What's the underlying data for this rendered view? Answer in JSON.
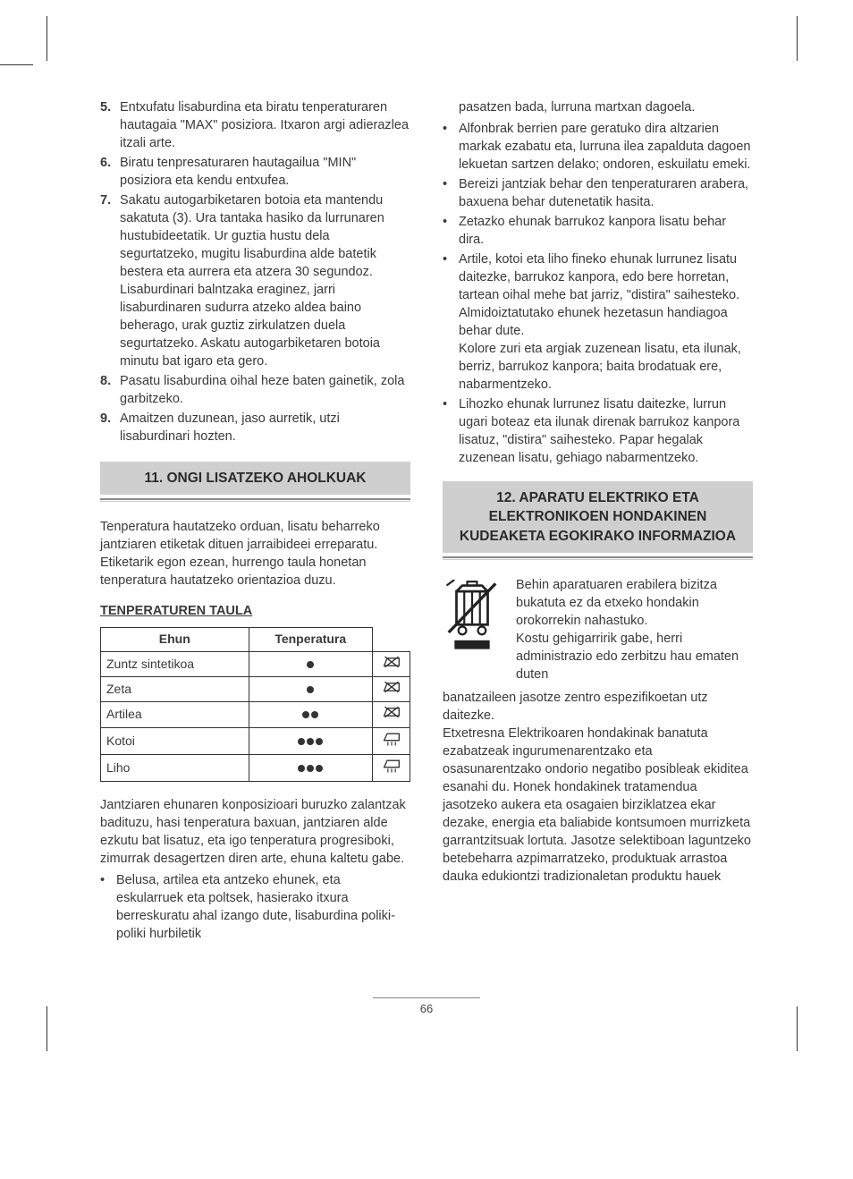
{
  "left": {
    "numbered": [
      {
        "n": "5.",
        "t": "Entxufatu lisaburdina eta biratu tenperaturaren hautagaia \"MAX\" posiziora. Itxaron argi adierazlea itzali arte."
      },
      {
        "n": "6.",
        "t": "Biratu tenpresaturaren hautagailua \"MIN\" posiziora eta kendu entxufea."
      },
      {
        "n": "7.",
        "t": "Sakatu autogarbiketaren botoia eta mantendu sakatuta (3). Ura tantaka hasiko da lurrunaren hustubideetatik. Ur guztia hustu dela segurtatzeko, mugitu lisaburdina alde batetik bestera eta aurrera eta atzera 30 segundoz. Lisaburdinari balntzaka eraginez, jarri lisaburdinaren sudurra atzeko aldea baino beherago, urak guztiz zirkulatzen duela segurtatzeko. Askatu autogarbiketaren botoia minutu bat igaro eta gero."
      },
      {
        "n": "8.",
        "t": "Pasatu lisaburdina oihal heze baten gainetik, zola garbitzeko."
      },
      {
        "n": "9.",
        "t": "Amaitzen duzunean, jaso aurretik, utzi lisaburdinari hozten."
      }
    ],
    "sec11_title": "11. ONGI LISATZEKO AHOLKUAK",
    "sec11_intro": "Tenperatura hautatzeko orduan, lisatu beharreko jantziaren etiketak dituen jarraibideei erreparatu. Etiketarik egon ezean, hurrengo taula honetan tenperatura hautatzeko orientazioa duzu.",
    "table_head": "TENPERATUREN TAULA",
    "table": {
      "col1": "Ehun",
      "col2": "Tenperatura",
      "rows": [
        {
          "name": "Zuntz sintetikoa",
          "dots": 1,
          "icon": "nosteam"
        },
        {
          "name": "Zeta",
          "dots": 1,
          "icon": "nosteam"
        },
        {
          "name": "Artilea",
          "dots": 2,
          "icon": "nosteam"
        },
        {
          "name": "Kotoi",
          "dots": 3,
          "icon": "steam"
        },
        {
          "name": "Liho",
          "dots": 3,
          "icon": "steam"
        }
      ]
    },
    "after_table": "Jantziaren ehunaren konposizioari buruzko zalantzak badituzu, hasi tenperatura baxuan, jantziaren alde ezkutu bat lisatuz, eta igo tenperatura progresiboki, zimurrak desagertzen diren arte, ehuna kaltetu gabe.",
    "left_bullets": [
      "Belusa, artilea eta antzeko ehunek, eta eskularruek eta poltsek, hasierako itxura berreskuratu ahal izango dute, lisaburdina poliki-poliki hurbiletik"
    ]
  },
  "right": {
    "cont": "pasatzen bada, lurruna martxan dagoela.",
    "bullets": [
      "Alfonbrak berrien pare geratuko dira altzarien markak ezabatu eta, lurruna ilea zapalduta dagoen lekuetan sartzen delako; ondoren, eskuilatu emeki.",
      "Bereizi jantziak behar den tenperaturaren arabera, baxuena behar dutenetatik hasita.",
      "Zetazko ehunak barrukoz kanpora lisatu behar dira.",
      "Artile, kotoi eta liho fineko ehunak lurrunez lisatu daitezke, barrukoz kanpora, edo bere horretan, tartean oihal mehe bat jarriz, \"distira\" saihesteko. Almidoiztatutako ehunek hezetasun handiagoa behar dute.\nKolore zuri eta argiak zuzenean lisatu, eta ilunak, berriz, barrukoz kanpora; baita brodatuak ere, nabarmentzeko.",
      "Lihozko ehunak lurrunez lisatu daitezke, lurrun ugari boteaz eta ilunak direnak barrukoz kanpora lisatuz, \"distira\" saihesteko. Papar hegalak zuzenean lisatu, gehiago nabarmentzeko."
    ],
    "sec12_title": "12. APARATU ELEKTRIKO ETA ELEKTRONIKOEN HONDAKINEN KUDEAKETA EGOKIRAKO INFORMAZIOA",
    "weee_first": "Behin aparatuaren erabilera bizitza bukatuta ez da etxeko hondakin orokorrekin nahastuko.\nKostu gehigarririk gabe, herri administrazio edo zerbitzu hau ematen duten",
    "weee_rest": "banatzaileen jasotze zentro espezifikoetan utz daitezke.\nEtxetresna Elektrikoaren hondakinak banatuta ezabatzeak ingurumenarentzako eta osasunarentzako ondorio negatibo posibleak ekiditea esanahi du. Honek hondakinek tratamendua jasotzeko aukera eta osagaien birziklatzea ekar dezake, energia eta baliabide kontsumoen murrizketa garrantzitsuak lortuta. Jasotze selektiboan laguntzeko betebeharra azpimarratzeko, produktuak arrastoa dauka edukiontzi tradizionaletan produktu hauek"
  },
  "pagenum": "66"
}
